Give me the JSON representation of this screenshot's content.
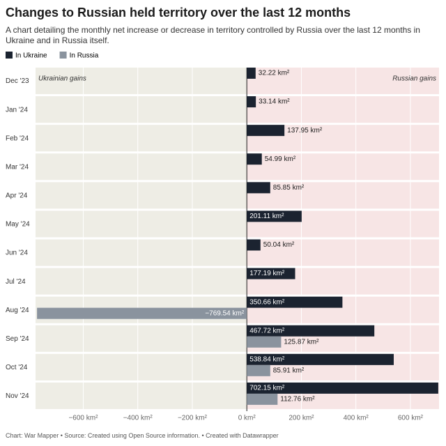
{
  "chart_data": {
    "type": "bar",
    "orientation": "horizontal",
    "title": "Changes to Russian held territory over the last 12 months",
    "subtitle": "A chart detailing the monthly net increase or decrease in territory controlled by Russia over the last 12 months in Ukraine and in Russia itself.",
    "categories": [
      "Dec '23",
      "Jan '24",
      "Feb '24",
      "Mar '24",
      "Apr '24",
      "May '24",
      "Jun '24",
      "Jul '24",
      "Aug '24",
      "Sep '24",
      "Oct '24",
      "Nov '24"
    ],
    "series": [
      {
        "name": "In Ukraine",
        "color": "#1b2330",
        "values": [
          32.22,
          33.14,
          137.95,
          54.99,
          85.85,
          201.11,
          50.04,
          177.19,
          350.66,
          467.72,
          538.84,
          702.15
        ],
        "value_labels": [
          "32.22 km²",
          "33.14 km²",
          "137.95 km²",
          "54.99 km²",
          "85.85 km²",
          "201.11 km²",
          "50.04 km²",
          "177.19 km²",
          "350.66 km²",
          "467.72 km²",
          "538.84 km²",
          "702.15 km²"
        ]
      },
      {
        "name": "In Russia",
        "color": "#8a939e",
        "values": [
          null,
          null,
          null,
          null,
          null,
          null,
          null,
          null,
          -769.54,
          125.87,
          85.91,
          112.76
        ],
        "value_labels": [
          null,
          null,
          null,
          null,
          null,
          null,
          null,
          null,
          "−769.54 km²",
          "125.87 km²",
          "85.91 km²",
          "112.76 km²"
        ]
      }
    ],
    "xlim": [
      -775,
      705
    ],
    "xticks": [
      {
        "value": -600,
        "label": "−600 km²"
      },
      {
        "value": -400,
        "label": "−400 km²"
      },
      {
        "value": -200,
        "label": "−200 km²"
      },
      {
        "value": 0,
        "label": "0 km²"
      },
      {
        "value": 200,
        "label": "200 km²"
      },
      {
        "value": 400,
        "label": "400 km²"
      },
      {
        "value": 600,
        "label": "600 km²"
      }
    ],
    "annotations": [
      "Ukrainian gains",
      "Russian gains"
    ],
    "footer": "Chart: War Mapper • Source: Created using Open Source information. • Created with Datawrapper",
    "grid": true
  }
}
